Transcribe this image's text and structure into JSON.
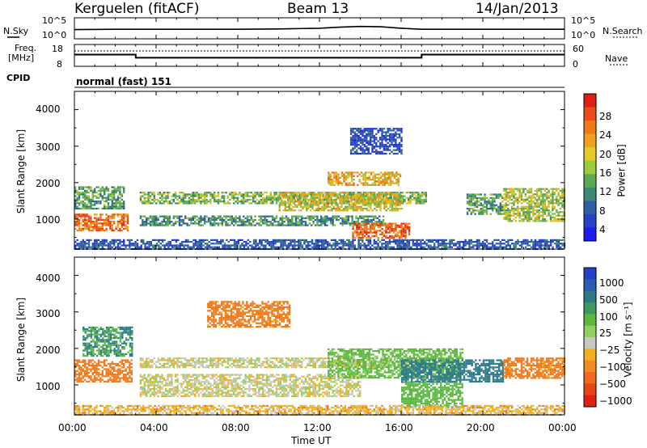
{
  "header": {
    "station": "Kerguelen (fitACF)",
    "beam": "Beam 13",
    "date": "14/Jan/2013"
  },
  "nsky_panel": {
    "label": "N.Sky",
    "right_label": "N.Search",
    "left_ticks": [
      "10^5",
      "10^0"
    ],
    "right_ticks": [
      "10^5",
      "10^0"
    ]
  },
  "freq_panel": {
    "label_line1": "Freq.",
    "label_line2": "[MHz]",
    "right_label": "Nave",
    "left_ticks": [
      "18",
      "8"
    ],
    "right_ticks": [
      "60",
      "0"
    ]
  },
  "cpid": {
    "label": "CPID",
    "value": "normal (fast) 151"
  },
  "power_panel": {
    "ylabel": "Slant Range [km]",
    "yticks": [
      "4000",
      "3000",
      "2000",
      "1000"
    ],
    "colorbar_label": "Power [dB]",
    "colorbar_ticks": [
      "28",
      "24",
      "20",
      "16",
      "12",
      "8",
      "4"
    ]
  },
  "velocity_panel": {
    "ylabel": "Slant Range [km]",
    "yticks": [
      "4000",
      "3000",
      "2000",
      "1000"
    ],
    "colorbar_label": "Velocity [m s⁻¹]",
    "colorbar_ticks": [
      "1000",
      "500",
      "100",
      "25",
      "−25",
      "−100",
      "−500",
      "−1000"
    ]
  },
  "xaxis": {
    "label": "Time UT",
    "ticks": [
      "00:00",
      "04:00",
      "08:00",
      "12:00",
      "16:00",
      "20:00",
      "00:00"
    ]
  },
  "chart_data": [
    {
      "type": "line",
      "panel": "sky_noise",
      "x_unit": "hours UT",
      "x": [
        0,
        2,
        4,
        6,
        8,
        10,
        12,
        13,
        14,
        15,
        16,
        17,
        18,
        20,
        22,
        24
      ],
      "values": [
        1.9,
        2.0,
        2.0,
        2.0,
        2.0,
        2.1,
        2.3,
        2.6,
        2.8,
        2.7,
        2.3,
        2.0,
        2.0,
        2.0,
        2.0,
        2.0
      ],
      "ylim": [
        0,
        5
      ]
    },
    {
      "type": "line",
      "panel": "frequency",
      "x_unit": "hours UT",
      "x": [
        0,
        3.0,
        3.0,
        17.0,
        17.0,
        24
      ],
      "values": [
        13.2,
        13.2,
        11.6,
        11.6,
        13.2,
        13.2
      ],
      "ylabel": "Freq. [MHz]",
      "ylim": [
        8,
        18
      ]
    },
    {
      "type": "heatmap",
      "panel": "power",
      "x_range": [
        0,
        24
      ],
      "ylim": [
        180,
        4500
      ],
      "color_range": [
        0,
        30
      ],
      "bands": [
        {
          "t0": 0.0,
          "t1": 2.6,
          "r0": 700,
          "r1": 1150,
          "level": 24
        },
        {
          "t0": 0.0,
          "t1": 2.4,
          "r0": 1300,
          "r1": 1900,
          "level": 12
        },
        {
          "t0": 3.2,
          "t1": 17.2,
          "r0": 1450,
          "r1": 1750,
          "level": 14
        },
        {
          "t0": 3.2,
          "t1": 15.2,
          "r0": 850,
          "r1": 1100,
          "level": 11
        },
        {
          "t0": 10.0,
          "t1": 16.0,
          "r0": 1250,
          "r1": 1750,
          "level": 18
        },
        {
          "t0": 13.6,
          "t1": 16.4,
          "r0": 500,
          "r1": 900,
          "level": 25
        },
        {
          "t0": 12.4,
          "t1": 16.0,
          "r0": 1950,
          "r1": 2300,
          "level": 20
        },
        {
          "t0": 0.0,
          "t1": 24.0,
          "r0": 200,
          "r1": 450,
          "level": 6
        },
        {
          "t0": 19.2,
          "t1": 21.0,
          "r0": 1150,
          "r1": 1700,
          "level": 12
        },
        {
          "t0": 21.0,
          "t1": 24.0,
          "r0": 950,
          "r1": 1850,
          "level": 16
        },
        {
          "t0": 13.5,
          "t1": 16.0,
          "r0": 2800,
          "r1": 3500,
          "level": 5
        }
      ]
    },
    {
      "type": "heatmap",
      "panel": "velocity",
      "x_range": [
        0,
        24
      ],
      "ylim": [
        180,
        4500
      ],
      "color_range": [
        -1000,
        1000
      ],
      "bands": [
        {
          "t0": 0.0,
          "t1": 2.8,
          "r0": 1100,
          "r1": 1700,
          "level": -300
        },
        {
          "t0": 0.4,
          "t1": 2.8,
          "r0": 1800,
          "r1": 2600,
          "level": 200
        },
        {
          "t0": 3.2,
          "t1": 16.8,
          "r0": 1500,
          "r1": 1750,
          "level": 0
        },
        {
          "t0": 3.2,
          "t1": 14.0,
          "r0": 700,
          "r1": 1300,
          "level": 0
        },
        {
          "t0": 12.4,
          "t1": 19.0,
          "r0": 1200,
          "r1": 2000,
          "level": 100
        },
        {
          "t0": 16.0,
          "t1": 19.0,
          "r0": 400,
          "r1": 1100,
          "level": 120
        },
        {
          "t0": 16.0,
          "t1": 21.0,
          "r0": 1100,
          "r1": 1700,
          "level": 400
        },
        {
          "t0": 21.0,
          "t1": 24.0,
          "r0": 1200,
          "r1": 1750,
          "level": -150
        },
        {
          "t0": 0.0,
          "t1": 24.0,
          "r0": 200,
          "r1": 450,
          "level": -60
        },
        {
          "t0": 6.5,
          "t1": 10.5,
          "r0": 2600,
          "r1": 3300,
          "level": -150
        }
      ]
    }
  ]
}
